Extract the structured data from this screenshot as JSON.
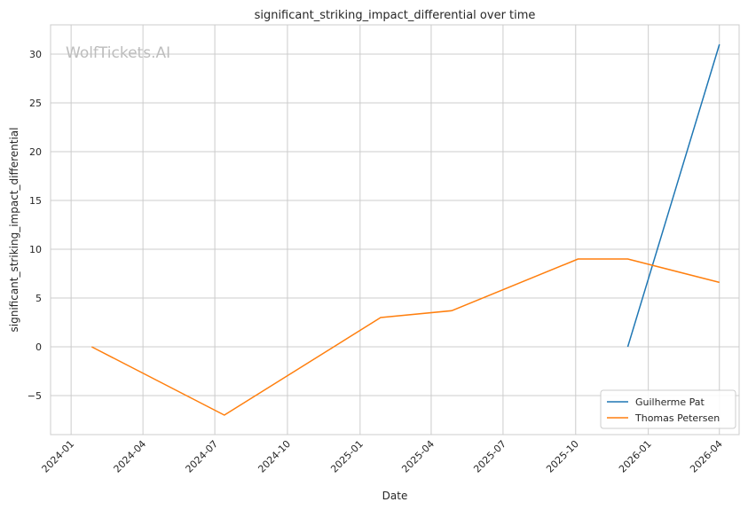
{
  "chart_data": {
    "type": "line",
    "title": "significant_striking_impact_differential over time",
    "xlabel": "Date",
    "ylabel": "significant_striking_impact_differential",
    "watermark": "WolfTickets.AI",
    "x_ticks": [
      "2024-01",
      "2024-04",
      "2024-07",
      "2024-10",
      "2025-01",
      "2025-04",
      "2025-07",
      "2025-10",
      "2026-01",
      "2026-04"
    ],
    "y_ticks": [
      "−5",
      "0",
      "5",
      "10",
      "15",
      "20",
      "25",
      "30"
    ],
    "y_tick_values": [
      -5,
      0,
      5,
      10,
      15,
      20,
      25,
      30
    ],
    "xlim": [
      "2023-12-06",
      "2026-04-26"
    ],
    "ylim": [
      -9,
      33
    ],
    "grid": true,
    "legend_position": "lower-right",
    "series": [
      {
        "name": "Guilherme Pat",
        "color": "#1f77b4",
        "points": [
          {
            "x": "2025-12-06",
            "y": 0
          },
          {
            "x": "2026-04-01",
            "y": 31
          }
        ]
      },
      {
        "name": "Thomas Petersen",
        "color": "#ff7f0e",
        "points": [
          {
            "x": "2024-01-27",
            "y": 0
          },
          {
            "x": "2024-07-13",
            "y": -7
          },
          {
            "x": "2025-01-27",
            "y": 3
          },
          {
            "x": "2025-04-27",
            "y": 3.7
          },
          {
            "x": "2025-10-04",
            "y": 9
          },
          {
            "x": "2025-12-06",
            "y": 9
          },
          {
            "x": "2026-04-01",
            "y": 6.6
          }
        ]
      }
    ]
  }
}
